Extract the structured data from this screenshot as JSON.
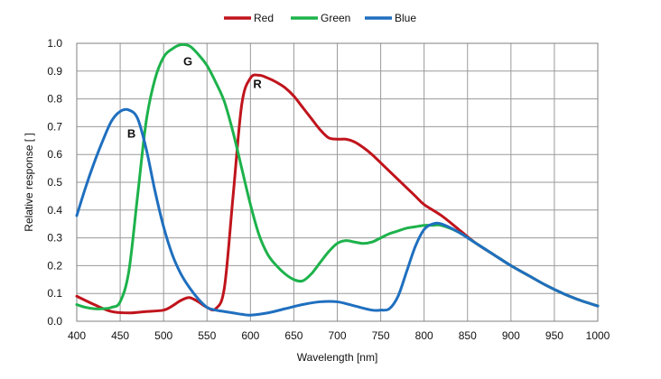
{
  "chart_data": {
    "type": "line",
    "title": "",
    "xlabel": "Wavelength [nm]",
    "ylabel": "Relative response [ ]",
    "xlim": [
      400,
      1000
    ],
    "ylim": [
      0,
      1.0
    ],
    "xticks": [
      400,
      450,
      500,
      550,
      600,
      650,
      700,
      750,
      800,
      850,
      900,
      950,
      1000
    ],
    "yticks": [
      0.0,
      0.1,
      0.2,
      0.3,
      0.4,
      0.5,
      0.6,
      0.7,
      0.8,
      0.9,
      1.0
    ],
    "ytick_labels": [
      "0.0",
      "0.1",
      "0.2",
      "0.3",
      "0.4",
      "0.5",
      "0.6",
      "0.7",
      "0.8",
      "0.9",
      "1.0"
    ],
    "grid": true,
    "legend_position": "top-center",
    "series": [
      {
        "name": "Red",
        "color": "#c0141c",
        "x": [
          400,
          420,
          440,
          460,
          480,
          500,
          510,
          520,
          530,
          540,
          550,
          560,
          570,
          580,
          590,
          600,
          610,
          620,
          630,
          640,
          650,
          660,
          670,
          680,
          690,
          700,
          710,
          720,
          730,
          740,
          750,
          760,
          770,
          780,
          790,
          800,
          820,
          840,
          860,
          880,
          900,
          920,
          940,
          960,
          980,
          1000
        ],
        "y": [
          0.09,
          0.06,
          0.035,
          0.03,
          0.035,
          0.04,
          0.055,
          0.075,
          0.085,
          0.07,
          0.05,
          0.045,
          0.12,
          0.45,
          0.78,
          0.875,
          0.885,
          0.875,
          0.86,
          0.84,
          0.81,
          0.77,
          0.73,
          0.69,
          0.66,
          0.655,
          0.655,
          0.645,
          0.625,
          0.6,
          0.57,
          0.54,
          0.51,
          0.48,
          0.45,
          0.42,
          0.38,
          0.33,
          0.28,
          0.24,
          0.2,
          0.165,
          0.13,
          0.1,
          0.075,
          0.055
        ]
      },
      {
        "name": "Green",
        "color": "#1db24b",
        "x": [
          400,
          410,
          420,
          430,
          440,
          450,
          460,
          470,
          480,
          490,
          500,
          510,
          520,
          530,
          540,
          550,
          560,
          570,
          580,
          590,
          600,
          610,
          620,
          630,
          640,
          650,
          660,
          670,
          680,
          690,
          700,
          710,
          720,
          730,
          740,
          750,
          760,
          770,
          780,
          790,
          800,
          810,
          820,
          840,
          860,
          880,
          900,
          920,
          940,
          960,
          980,
          1000
        ],
        "y": [
          0.06,
          0.05,
          0.045,
          0.045,
          0.05,
          0.07,
          0.18,
          0.45,
          0.72,
          0.87,
          0.95,
          0.98,
          0.995,
          0.99,
          0.96,
          0.92,
          0.86,
          0.79,
          0.68,
          0.55,
          0.42,
          0.31,
          0.24,
          0.2,
          0.17,
          0.15,
          0.145,
          0.17,
          0.21,
          0.25,
          0.28,
          0.29,
          0.285,
          0.28,
          0.285,
          0.3,
          0.315,
          0.325,
          0.335,
          0.34,
          0.345,
          0.345,
          0.345,
          0.32,
          0.28,
          0.24,
          0.2,
          0.165,
          0.13,
          0.1,
          0.075,
          0.055
        ]
      },
      {
        "name": "Blue",
        "color": "#1f6fbf",
        "x": [
          400,
          410,
          420,
          430,
          440,
          450,
          460,
          470,
          480,
          490,
          500,
          510,
          520,
          530,
          540,
          550,
          560,
          570,
          580,
          590,
          600,
          620,
          640,
          660,
          680,
          700,
          720,
          740,
          750,
          760,
          770,
          780,
          790,
          800,
          810,
          820,
          840,
          860,
          880,
          900,
          920,
          940,
          960,
          980,
          1000
        ],
        "y": [
          0.38,
          0.48,
          0.57,
          0.65,
          0.72,
          0.755,
          0.76,
          0.73,
          0.62,
          0.47,
          0.34,
          0.24,
          0.17,
          0.12,
          0.08,
          0.05,
          0.04,
          0.035,
          0.03,
          0.025,
          0.022,
          0.03,
          0.045,
          0.06,
          0.07,
          0.07,
          0.055,
          0.04,
          0.04,
          0.045,
          0.09,
          0.18,
          0.27,
          0.33,
          0.35,
          0.35,
          0.32,
          0.28,
          0.24,
          0.2,
          0.165,
          0.13,
          0.1,
          0.075,
          0.055
        ]
      }
    ],
    "annotations": [
      {
        "text": "R",
        "x": 608,
        "y": 0.84
      },
      {
        "text": "G",
        "x": 528,
        "y": 0.92
      },
      {
        "text": "B",
        "x": 463,
        "y": 0.66
      }
    ]
  }
}
